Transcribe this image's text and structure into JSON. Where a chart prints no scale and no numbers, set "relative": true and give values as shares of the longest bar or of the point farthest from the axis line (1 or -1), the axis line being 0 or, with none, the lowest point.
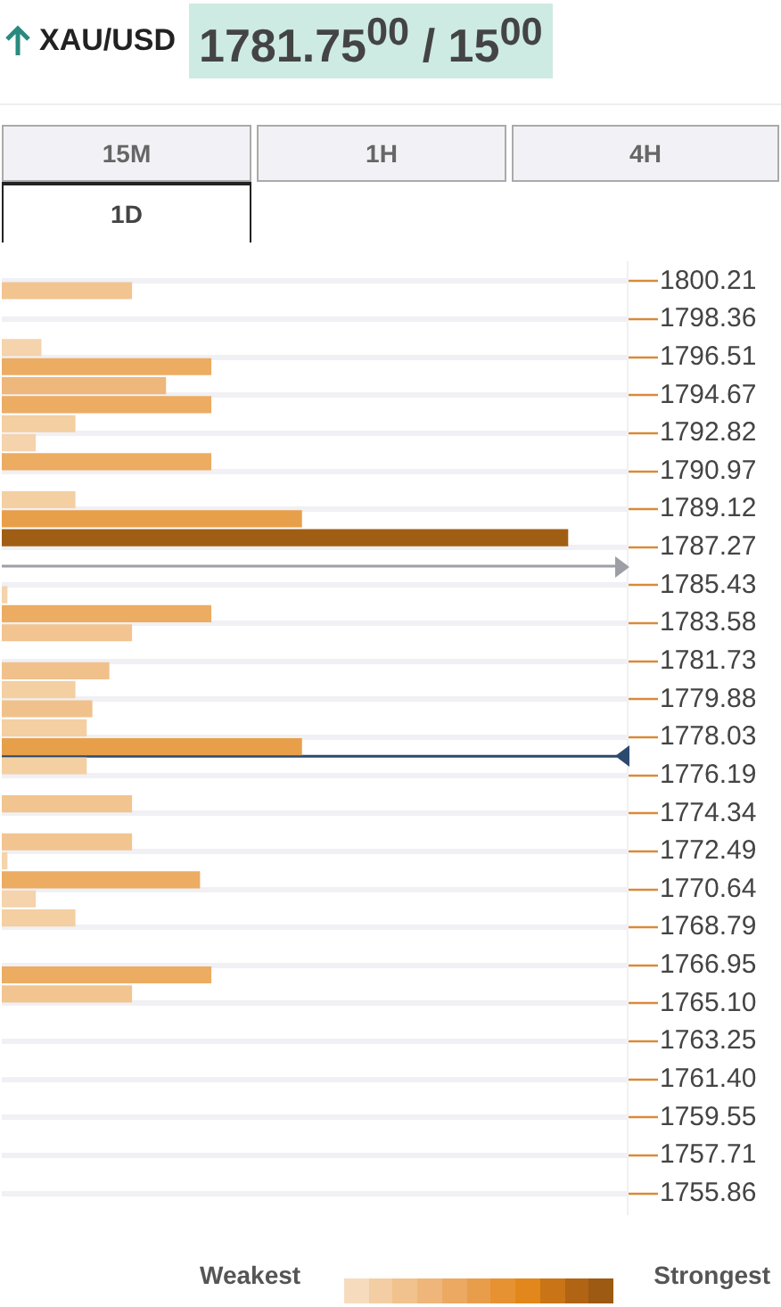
{
  "chart_data": {
    "type": "bar",
    "orientation": "horizontal",
    "relative": true,
    "title": "XAU/USD",
    "subtitle": "1781.75$^{00}$ / 15$^{00}$",
    "annotations": [
      "15M",
      "1H",
      "4H",
      "1D",
      "Weakest",
      "Strongest"
    ],
    "categories": [
      "1800.21",
      "1798.36",
      "1796.51",
      "1794.67",
      "1792.82",
      "1790.97",
      "1789.12",
      "1787.27",
      "1785.43",
      "1783.58",
      "1781.73",
      "1779.88",
      "1778.03",
      "1776.19",
      "1774.34",
      "1772.49",
      "1770.64",
      "1768.79",
      "1766.95",
      "1765.10",
      "1763.25",
      "1761.40",
      "1759.55",
      "1757.71",
      "1755.86"
    ],
    "series": [
      {
        "values": [
          null,
          null,
          0.07,
          0.29,
          0.13,
          0.37,
          0.13,
          1,
          null,
          0.37,
          null,
          0.13,
          0.15,
          0.15,
          0.23,
          0.23,
          0.35,
          0.13,
          null,
          0.23,
          null,
          null,
          null,
          null,
          null
        ],
        "colors": [
          null,
          null,
          "#f4d3ad",
          "#eeb77b",
          "#f3cfa2",
          "#ecac62",
          "#f3cfa2",
          "#a05e14",
          null,
          "#ecac62",
          null,
          "#f3cfa2",
          "#f3cfa2",
          "#f3cfa2",
          "#f2c490",
          "#f2c490",
          "#ecac62",
          "#f3cfa2",
          null,
          "#f2c490",
          null,
          null,
          null,
          null,
          null
        ]
      },
      {
        "values": [
          0.23,
          null,
          0.37,
          0.37,
          0.06,
          null,
          0.53,
          null,
          0.01,
          0.23,
          0.19,
          0.16,
          0.53,
          null,
          null,
          0.01,
          0.06,
          null,
          0.37,
          null,
          null,
          null,
          null,
          null,
          null
        ],
        "colors": [
          "#f2c490",
          null,
          "#ecac62",
          "#ecac62",
          "#f4d3ad",
          null,
          "#e89f4a",
          null,
          "#f4d3ad",
          "#f2c490",
          "#f1c18c",
          "#f1c18c",
          "#e89f4a",
          null,
          null,
          "#f4d3ad",
          "#f4d3ad",
          null,
          "#ecac62",
          null,
          null,
          null,
          null,
          null,
          null
        ]
      }
    ],
    "grid": "y",
    "ref_lines": [
      {
        "axis": "y",
        "value": "1785.43",
        "color": "#9e9ea6"
      },
      {
        "axis": "y",
        "value": "1776.19",
        "color": "#2c4a6e"
      }
    ]
  }
}
